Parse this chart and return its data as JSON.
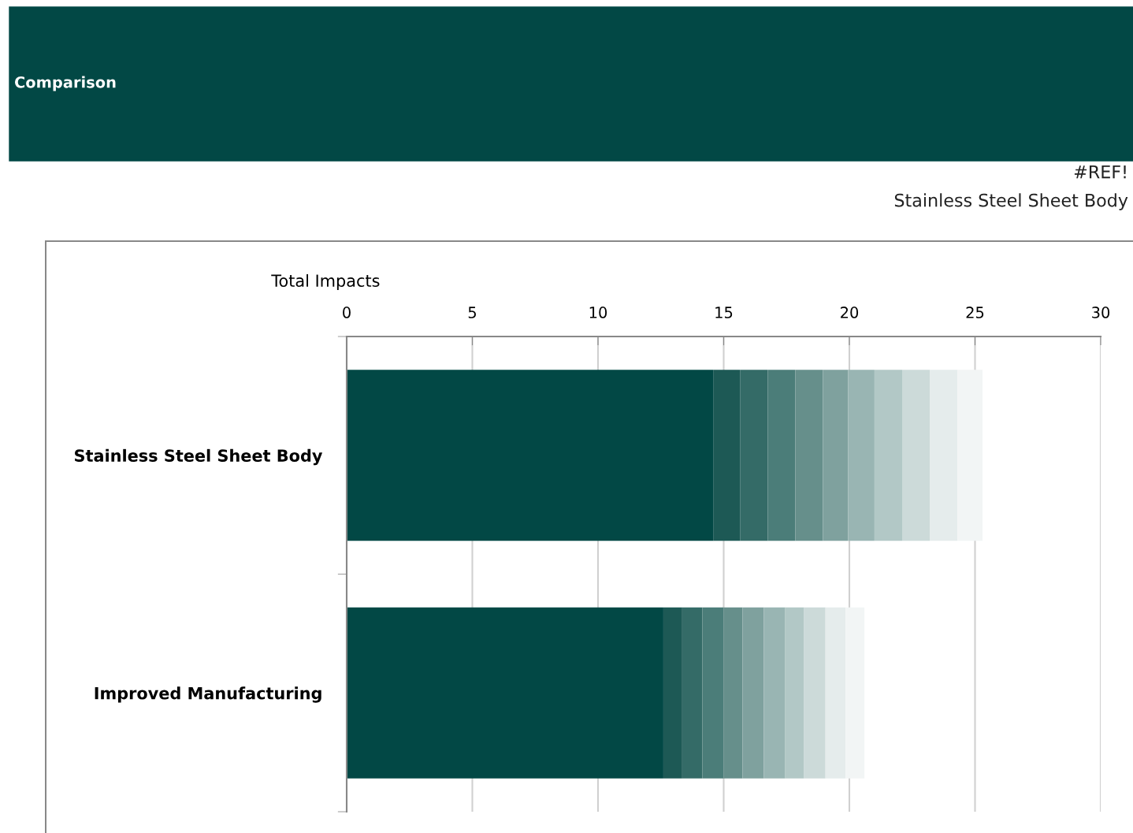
{
  "chart_data": {
    "type": "bar",
    "orientation": "horizontal",
    "stacked": true,
    "title": "Comparison",
    "annotations": [
      "#REF!",
      "Stainless Steel Sheet Body"
    ],
    "xlabel": "Total Impacts",
    "categories": [
      "Stainless Steel Sheet Body",
      "Improved Manufacturing"
    ],
    "series": [
      {
        "color": "#024845",
        "values": [
          14.6,
          12.6
        ]
      },
      {
        "color": "#1d5955",
        "values": [
          1.05,
          0.75
        ]
      },
      {
        "color": "#346b67",
        "values": [
          1.1,
          0.8
        ]
      },
      {
        "color": "#4b7d79",
        "values": [
          1.1,
          0.85
        ]
      },
      {
        "color": "#668f8b",
        "values": [
          1.1,
          0.75
        ]
      },
      {
        "color": "#7fa19e",
        "values": [
          1.0,
          0.85
        ]
      },
      {
        "color": "#99b5b3",
        "values": [
          1.05,
          0.85
        ]
      },
      {
        "color": "#b2c8c6",
        "values": [
          1.1,
          0.75
        ]
      },
      {
        "color": "#ccdad9",
        "values": [
          1.1,
          0.85
        ]
      },
      {
        "color": "#e5ecec",
        "values": [
          1.1,
          0.8
        ]
      },
      {
        "color": "#f2f5f5",
        "values": [
          1.0,
          0.75
        ]
      }
    ],
    "xlim": [
      0,
      30
    ],
    "xticks": [
      0,
      5,
      10,
      15,
      20,
      25,
      30
    ],
    "grid": "x"
  }
}
